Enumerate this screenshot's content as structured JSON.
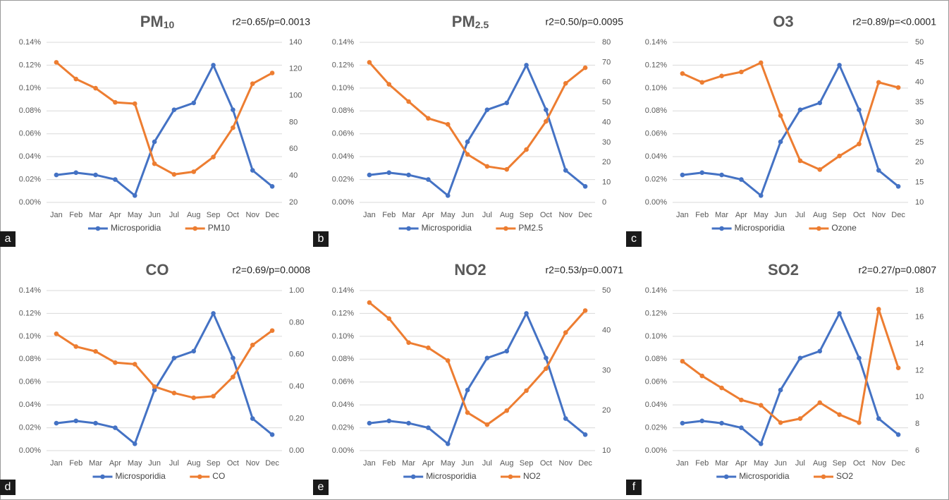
{
  "chart_data": [
    {
      "type": "line",
      "title": "PM",
      "title_sub": "10",
      "stat": "r2=0.65/p=0.0013",
      "panel_label": "a",
      "categories": [
        "Jan",
        "Feb",
        "Mar",
        "Apr",
        "May",
        "Jun",
        "Jul",
        "Aug",
        "Sep",
        "Oct",
        "Nov",
        "Dec"
      ],
      "ylim": [
        0,
        0.14
      ],
      "yticks": [
        {
          "value": 0,
          "label": "0.00%"
        },
        {
          "value": 0.02,
          "label": "0.02%"
        },
        {
          "value": 0.04,
          "label": "0.04%"
        },
        {
          "value": 0.06,
          "label": "0.06%"
        },
        {
          "value": 0.08,
          "label": "0.08%"
        },
        {
          "value": 0.1,
          "label": "0.10%"
        },
        {
          "value": 0.12,
          "label": "0.12%"
        },
        {
          "value": 0.14,
          "label": "0.14%"
        }
      ],
      "y2lim": [
        20,
        140
      ],
      "y2ticks": [
        20,
        40,
        60,
        80,
        100,
        120,
        140
      ],
      "grid": true,
      "series": [
        {
          "name": "Microsporidia",
          "color": "#4472c4",
          "values": [
            0.024,
            0.026,
            0.024,
            0.02,
            0.006,
            0.053,
            0.081,
            0.087,
            0.12,
            0.081,
            0.028,
            0.014
          ]
        },
        {
          "name": "PM10",
          "color": "#ed7d31",
          "axis": "y2",
          "values": [
            125,
            112.5,
            105.6,
            95,
            94,
            49,
            41,
            43,
            54,
            76,
            109,
            117
          ]
        }
      ]
    },
    {
      "type": "line",
      "title": "PM",
      "title_sub": "2.5",
      "stat": "r2=0.50/p=0.0095",
      "panel_label": "b",
      "categories": [
        "Jan",
        "Feb",
        "Mar",
        "Apr",
        "May",
        "Jun",
        "Jul",
        "Aug",
        "Sep",
        "Oct",
        "Nov",
        "Dec"
      ],
      "ylim": [
        0,
        0.14
      ],
      "yticks": [
        {
          "value": 0,
          "label": "0.00%"
        },
        {
          "value": 0.02,
          "label": "0.02%"
        },
        {
          "value": 0.04,
          "label": "0.04%"
        },
        {
          "value": 0.06,
          "label": "0.06%"
        },
        {
          "value": 0.08,
          "label": "0.08%"
        },
        {
          "value": 0.1,
          "label": "0.10%"
        },
        {
          "value": 0.12,
          "label": "0.12%"
        },
        {
          "value": 0.14,
          "label": "0.14%"
        }
      ],
      "y2lim": [
        0,
        80
      ],
      "y2ticks": [
        0,
        10,
        20,
        30,
        40,
        50,
        60,
        70,
        80
      ],
      "grid": true,
      "series": [
        {
          "name": "Microsporidia",
          "color": "#4472c4",
          "values": [
            0.024,
            0.026,
            0.024,
            0.02,
            0.006,
            0.053,
            0.081,
            0.087,
            0.12,
            0.081,
            0.028,
            0.014
          ]
        },
        {
          "name": "PM2.5",
          "color": "#ed7d31",
          "axis": "y2",
          "values": [
            70,
            59,
            50.4,
            42,
            39,
            24,
            18,
            16.5,
            26.4,
            40.5,
            59.5,
            67.3
          ]
        }
      ]
    },
    {
      "type": "line",
      "title": "O3",
      "stat": "r2=0.89/p=<0.0001",
      "panel_label": "c",
      "categories": [
        "Jan",
        "Feb",
        "Mar",
        "Apr",
        "May",
        "Jun",
        "Jul",
        "Aug",
        "Sep",
        "Oct",
        "Nov",
        "Dec"
      ],
      "ylim": [
        0,
        0.14
      ],
      "yticks": [
        {
          "value": 0,
          "label": "0.00%"
        },
        {
          "value": 0.02,
          "label": "0.02%"
        },
        {
          "value": 0.04,
          "label": "0.04%"
        },
        {
          "value": 0.06,
          "label": "0.06%"
        },
        {
          "value": 0.08,
          "label": "0.08%"
        },
        {
          "value": 0.1,
          "label": "0.10%"
        },
        {
          "value": 0.12,
          "label": "0.12%"
        },
        {
          "value": 0.14,
          "label": "0.14%"
        }
      ],
      "y2lim": [
        10,
        50
      ],
      "y2ticks": [
        10,
        15,
        20,
        25,
        30,
        35,
        40,
        45,
        50
      ],
      "grid": true,
      "series": [
        {
          "name": "Microsporidia",
          "color": "#4472c4",
          "values": [
            0.024,
            0.026,
            0.024,
            0.02,
            0.006,
            0.053,
            0.081,
            0.087,
            0.12,
            0.081,
            0.028,
            0.014
          ]
        },
        {
          "name": "Ozone",
          "color": "#ed7d31",
          "axis": "y2",
          "values": [
            42.2,
            40,
            41.6,
            42.6,
            44.9,
            31.7,
            20.4,
            18.2,
            21.6,
            24.6,
            40,
            38.7
          ]
        }
      ]
    },
    {
      "type": "line",
      "title": "CO",
      "stat": "r2=0.69/p=0.0008",
      "panel_label": "d",
      "categories": [
        "Jan",
        "Feb",
        "Mar",
        "Apr",
        "May",
        "Jun",
        "Jul",
        "Aug",
        "Sep",
        "Oct",
        "Nov",
        "Dec"
      ],
      "ylim": [
        0,
        0.14
      ],
      "yticks": [
        {
          "value": 0,
          "label": "0.00%"
        },
        {
          "value": 0.02,
          "label": "0.02%"
        },
        {
          "value": 0.04,
          "label": "0.04%"
        },
        {
          "value": 0.06,
          "label": "0.06%"
        },
        {
          "value": 0.08,
          "label": "0.08%"
        },
        {
          "value": 0.1,
          "label": "0.10%"
        },
        {
          "value": 0.12,
          "label": "0.12%"
        },
        {
          "value": 0.14,
          "label": "0.14%"
        }
      ],
      "y2lim": [
        0,
        1
      ],
      "y2ticks": [
        {
          "value": 0,
          "label": "0.00"
        },
        {
          "value": 0.2,
          "label": "0.20"
        },
        {
          "value": 0.4,
          "label": "0.40"
        },
        {
          "value": 0.6,
          "label": "0.60"
        },
        {
          "value": 0.8,
          "label": "0.80"
        },
        {
          "value": 1,
          "label": "1.00"
        }
      ],
      "grid": true,
      "series": [
        {
          "name": "Microsporidia",
          "color": "#4472c4",
          "values": [
            0.024,
            0.026,
            0.024,
            0.02,
            0.006,
            0.053,
            0.081,
            0.087,
            0.12,
            0.081,
            0.028,
            0.014
          ]
        },
        {
          "name": "CO",
          "color": "#ed7d31",
          "axis": "y2",
          "values": [
            0.73,
            0.65,
            0.62,
            0.55,
            0.54,
            0.4,
            0.36,
            0.33,
            0.34,
            0.46,
            0.66,
            0.75
          ]
        }
      ]
    },
    {
      "type": "line",
      "title": "NO2",
      "stat": "r2=0.53/p=0.0071",
      "panel_label": "e",
      "categories": [
        "Jan",
        "Feb",
        "Mar",
        "Apr",
        "May",
        "Jun",
        "Jul",
        "Aug",
        "Sep",
        "Oct",
        "Nov",
        "Dec"
      ],
      "ylim": [
        0,
        0.14
      ],
      "yticks": [
        {
          "value": 0,
          "label": "0.00%"
        },
        {
          "value": 0.02,
          "label": "0.02%"
        },
        {
          "value": 0.04,
          "label": "0.04%"
        },
        {
          "value": 0.06,
          "label": "0.06%"
        },
        {
          "value": 0.08,
          "label": "0.08%"
        },
        {
          "value": 0.1,
          "label": "0.10%"
        },
        {
          "value": 0.12,
          "label": "0.12%"
        },
        {
          "value": 0.14,
          "label": "0.14%"
        }
      ],
      "y2lim": [
        10,
        50
      ],
      "y2ticks": [
        10,
        20,
        30,
        40,
        50
      ],
      "grid": true,
      "series": [
        {
          "name": "Microsporidia",
          "color": "#4472c4",
          "values": [
            0.024,
            0.026,
            0.024,
            0.02,
            0.006,
            0.053,
            0.081,
            0.087,
            0.12,
            0.081,
            0.028,
            0.014
          ]
        },
        {
          "name": "NO2",
          "color": "#ed7d31",
          "axis": "y2",
          "values": [
            47,
            43,
            37,
            35.7,
            32.5,
            19.5,
            16.5,
            20,
            25,
            30.5,
            39.5,
            45
          ]
        }
      ]
    },
    {
      "type": "line",
      "title": "SO2",
      "stat": "r2=0.27/p=0.0807",
      "panel_label": "f",
      "categories": [
        "Jan",
        "Feb",
        "Mar",
        "Apr",
        "May",
        "Jun",
        "Jul",
        "Aug",
        "Sep",
        "Oct",
        "Nov",
        "Dec"
      ],
      "ylim": [
        0,
        0.14
      ],
      "yticks": [
        {
          "value": 0,
          "label": "0.00%"
        },
        {
          "value": 0.02,
          "label": "0.02%"
        },
        {
          "value": 0.04,
          "label": "0.04%"
        },
        {
          "value": 0.06,
          "label": "0.06%"
        },
        {
          "value": 0.08,
          "label": "0.08%"
        },
        {
          "value": 0.1,
          "label": "0.10%"
        },
        {
          "value": 0.12,
          "label": "0.12%"
        },
        {
          "value": 0.14,
          "label": "0.14%"
        }
      ],
      "y2lim": [
        6,
        18
      ],
      "y2ticks": [
        6,
        8,
        10,
        12,
        14,
        16,
        18
      ],
      "grid": true,
      "series": [
        {
          "name": "Microsporidia",
          "color": "#4472c4",
          "values": [
            0.024,
            0.026,
            0.024,
            0.02,
            0.006,
            0.053,
            0.081,
            0.087,
            0.12,
            0.081,
            0.028,
            0.014
          ]
        },
        {
          "name": "SO2",
          "color": "#ed7d31",
          "axis": "y2",
          "values": [
            12.7,
            11.6,
            10.7,
            9.8,
            9.4,
            8.1,
            8.4,
            9.6,
            8.7,
            8.1,
            16.6,
            12.2
          ]
        }
      ]
    }
  ]
}
